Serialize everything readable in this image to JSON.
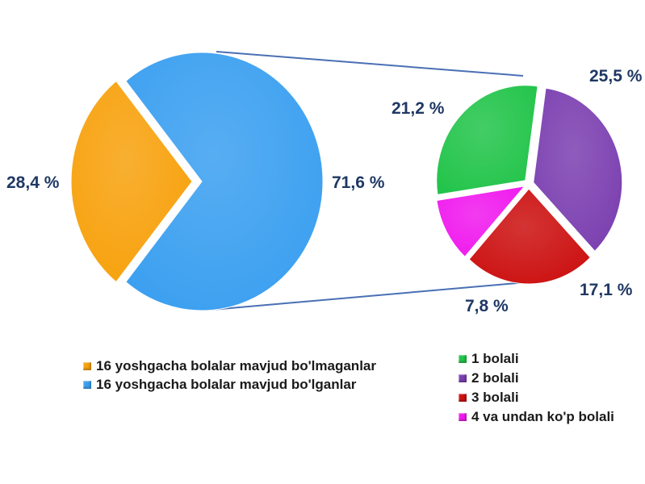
{
  "chart_data": {
    "type": "pie",
    "main_pie": {
      "slices": [
        {
          "label": "16 yoshgacha bolalar mavjud bo'lmaganlar",
          "value": 28.4,
          "value_label": "28,4 %",
          "color": "#f7a10c"
        },
        {
          "label": "16 yoshgacha bolalar mavjud bo'lganlar",
          "value": 71.6,
          "value_label": "71,6 %",
          "color": "#3a9ff0"
        }
      ]
    },
    "sub_pie": {
      "slices": [
        {
          "label": "1 bolali",
          "value": 21.2,
          "value_label": "21,2 %",
          "color": "#22c44a"
        },
        {
          "label": "2 bolali",
          "value": 25.5,
          "value_label": "25,5 %",
          "color": "#7b3fb0"
        },
        {
          "label": "3 bolali",
          "value": 17.1,
          "value_label": "17,1 %",
          "color": "#cc1010"
        },
        {
          "label": "4 va undan ko'p bolali",
          "value": 7.8,
          "value_label": "7,8 %",
          "color": "#f018ee"
        }
      ]
    },
    "legend_left": [
      "16 yoshgacha bolalar mavjud bo'lmaganlar",
      "16 yoshgacha bolalar mavjud bo'lganlar"
    ],
    "legend_right": [
      "1 bolali",
      "2 bolali",
      "3 bolali",
      "4 va undan ko'p bolali"
    ],
    "connector_color": "#4a6fb5"
  }
}
